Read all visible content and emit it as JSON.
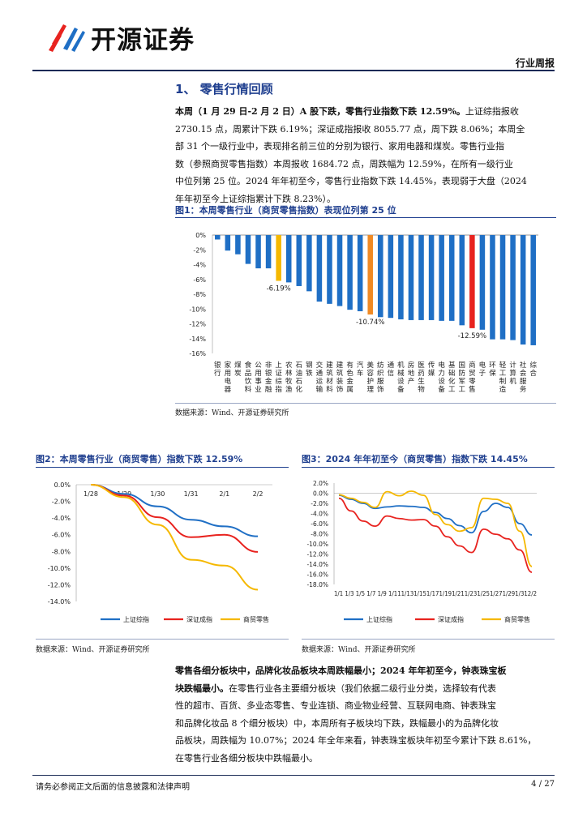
{
  "header": {
    "logo_text": "开源证券",
    "report_type": "行业周报"
  },
  "section": {
    "title": "1、 零售行情回顾"
  },
  "para1": {
    "bold_lead": "本周（1 月 29 日-2 月 2 日）A 股下跌，零售行业指数下跌 12.59%。",
    "line1_rest": "上证综指报收",
    "lines": [
      "2730.15 点，周累计下跌 6.19%；深证成指报收 8055.77 点，周下跌 8.06%；本周全",
      "部 31 个一级行业中，表现排名前三位的分别为银行、家用电器和煤炭。零售行业指",
      "数（参照商贸零售指数）本周报收 1684.72 点，周跌幅为 12.59%，在所有一级行业",
      "中位列第 25 位。2024 年年初至今，零售行业指数下跌 14.45%，表现弱于大盘（2024",
      "年年初至今上证综指累计下跌 8.23%）。"
    ]
  },
  "fig1": {
    "title": "图1：本周零售行业（商贸零售指数）表现位列第 25 位",
    "source": "数据来源：Wind、开源证券研究所"
  },
  "fig2": {
    "title": "图2：本周零售行业（商贸零售）指数下跌 12.59%",
    "source": "数据来源：Wind、开源证券研究所"
  },
  "fig3": {
    "title": "图3：2024 年年初至今（商贸零售）指数下跌 14.45%",
    "source": "数据来源：Wind、开源证券研究所"
  },
  "para2": {
    "bold_line1": "零售各细分板块中，品牌化妆品板块本周跌幅最小；2024 年年初至今，钟表珠宝板",
    "bold_line2": "块跌幅最小。",
    "line2_rest": "在零售行业各主要细分板块（我们依据二级行业分类，选择较有代表",
    "lines": [
      "性的超市、百货、多业态零售、专业连锁、商业物业经营、互联网电商、钟表珠宝",
      "和品牌化妆品 8 个细分板块）中，本周所有子板块均下跌，跌幅最小的为品牌化妆",
      "品板块，周跌幅为 10.07%；2024 年全年来看，钟表珠宝板块年初至今累计下跌 8.61%，",
      "在零售行业各细分板块中跌幅最小。"
    ]
  },
  "footer": {
    "disclaimer": "请务必参阅正文后面的信息披露和法律声明",
    "page": "4 / 27"
  },
  "chart_data": [
    {
      "type": "bar",
      "ylim": [
        -16,
        0
      ],
      "yticks": [
        "0%",
        "-2%",
        "-4%",
        "-6%",
        "-8%",
        "-10%",
        "-12%",
        "-14%",
        "-16%"
      ],
      "categories": [
        "银行",
        "家用电器",
        "煤炭",
        "食品饮料",
        "公用事业",
        "非银金融",
        "上证综指",
        "农林牧渔",
        "石油石化",
        "钢铁",
        "交通运输",
        "建筑材料",
        "建筑装饰",
        "有色金属",
        "汽车",
        "美容护理",
        "纺织服饰",
        "通信",
        "机械设备",
        "房地产",
        "医药生物",
        "传媒",
        "电力设备",
        "基础化工",
        "国防军工",
        "商贸零售",
        "电子",
        "环保",
        "轻工制造",
        "计算机",
        "社会服务",
        "综合"
      ],
      "values": [
        -0.6,
        -2.1,
        -2.6,
        -3.9,
        -4.5,
        -4.5,
        -6.19,
        -6.4,
        -6.9,
        -7.6,
        -9.0,
        -9.3,
        -9.6,
        -10.1,
        -10.3,
        -10.74,
        -11.1,
        -11.2,
        -11.4,
        -11.5,
        -11.5,
        -11.5,
        -11.6,
        -11.6,
        -12.2,
        -12.59,
        -12.8,
        -14.1,
        -14.1,
        -14.2,
        -14.8,
        -14.9
      ],
      "highlight": {
        "上证综指": "#f5b800",
        "美容护理": "#f08a24",
        "商贸零售": "#e8231f"
      },
      "bar_color": "#1f6fc5",
      "labels": [
        {
          "category": "上证综指",
          "text": "-6.19%"
        },
        {
          "category": "美容护理",
          "text": "-10.74%"
        },
        {
          "category": "商贸零售",
          "text": "-12.59%"
        }
      ]
    },
    {
      "type": "line",
      "x": [
        "1/28",
        "1/29",
        "1/30",
        "1/31",
        "2/1",
        "2/2"
      ],
      "ylim": [
        -14,
        0
      ],
      "yticks": [
        "0.0%",
        "-2.0%",
        "-4.0%",
        "-6.0%",
        "-8.0%",
        "-10.0%",
        "-12.0%",
        "-14.0%"
      ],
      "series": [
        {
          "name": "上证综指",
          "color": "#1f6fc5",
          "values": [
            0,
            -1.1,
            -2.6,
            -4.2,
            -5.0,
            -6.19
          ]
        },
        {
          "name": "深证成指",
          "color": "#e8231f",
          "values": [
            0,
            -1.3,
            -3.9,
            -6.3,
            -6.0,
            -8.06
          ]
        },
        {
          "name": "商贸零售",
          "color": "#f5b800",
          "values": [
            0,
            -1.5,
            -4.8,
            -9.0,
            -9.7,
            -12.59
          ]
        }
      ]
    },
    {
      "type": "line",
      "x": [
        "1/1",
        "1/3",
        "1/5",
        "1/7",
        "1/9",
        "1/11",
        "1/13",
        "1/15",
        "1/17",
        "1/19",
        "1/21",
        "1/23",
        "1/25",
        "1/27",
        "1/29",
        "1/31",
        "2/2"
      ],
      "xlabels": "1/1 1/3 1/5 1/7 1/9 1/111/131/151/171/191/211/231/251/271/291/312/2",
      "ylim": [
        -18,
        2
      ],
      "yticks": [
        "2.0%",
        "0.0%",
        "-2.0%",
        "-4.0%",
        "-6.0%",
        "-8.0%",
        "-10.0%",
        "-12.0%",
        "-14.0%",
        "-16.0%",
        "-18.0%"
      ],
      "series": [
        {
          "name": "上证综指",
          "color": "#1f6fc5",
          "values": [
            -0.4,
            -1.2,
            -2.0,
            -3.0,
            -2.7,
            -2.5,
            -2.6,
            -2.8,
            -3.8,
            -5.0,
            -6.4,
            -7.8,
            -3.6,
            -2.0,
            -2.8,
            -6.0,
            -8.23
          ]
        },
        {
          "name": "深证成指",
          "color": "#e8231f",
          "values": [
            -1.0,
            -3.5,
            -5.5,
            -6.5,
            -4.5,
            -5.0,
            -5.3,
            -5.2,
            -6.5,
            -8.6,
            -10.4,
            -11.7,
            -7.1,
            -8.1,
            -9.0,
            -11.2,
            -15.6
          ]
        },
        {
          "name": "商贸零售",
          "color": "#f5b800",
          "values": [
            -0.3,
            -1.0,
            -1.8,
            -2.8,
            0.3,
            -0.5,
            0.4,
            -0.4,
            -4.2,
            -6.2,
            -7.5,
            -6.8,
            -1.0,
            -1.2,
            -2.0,
            -7.5,
            -14.45
          ]
        }
      ]
    }
  ]
}
